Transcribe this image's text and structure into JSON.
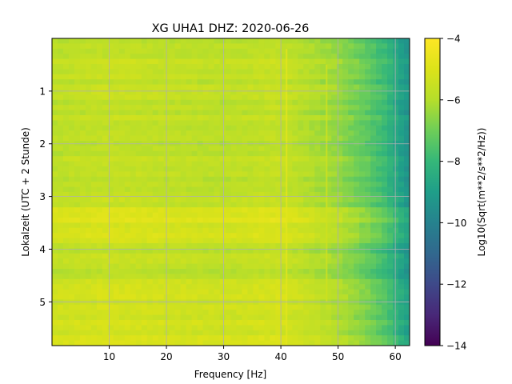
{
  "chart_data": {
    "type": "heatmap",
    "title": "XG UHA1  DHZ: 2020-06-26",
    "xlabel": "Frequency [Hz]",
    "ylabel": "Lokalzeit (UTC + 2 Stunde)",
    "colorbar_label": "Log10(Sqrt(m**2/s**2/Hz))",
    "xlim": [
      0,
      62.5
    ],
    "ylim": [
      5.83,
      0
    ],
    "clim": [
      -14,
      -4
    ],
    "colormap": "viridis",
    "grid": true,
    "xticks": [
      10,
      20,
      30,
      40,
      50,
      60
    ],
    "xtick_labels": [
      "10",
      "20",
      "30",
      "40",
      "50",
      "60"
    ],
    "yticks": [
      1,
      2,
      3,
      4,
      5
    ],
    "ytick_labels": [
      "1",
      "2",
      "3",
      "4",
      "5"
    ],
    "cticks": [
      -4,
      -6,
      -8,
      -10,
      -12,
      -14
    ],
    "ctick_labels": [
      "−4",
      "−6",
      "−8",
      "−10",
      "−12",
      "−14"
    ],
    "z_profile_by_frequency": [
      {
        "x": 0,
        "z": -5.8
      },
      {
        "x": 10,
        "z": -5.6
      },
      {
        "x": 20,
        "z": -5.7
      },
      {
        "x": 30,
        "z": -5.8
      },
      {
        "x": 40,
        "z": -5.6
      },
      {
        "x": 45,
        "z": -6.0
      },
      {
        "x": 50,
        "z": -6.4
      },
      {
        "x": 55,
        "z": -7.2
      },
      {
        "x": 58,
        "z": -7.8
      },
      {
        "x": 60,
        "z": -8.5
      },
      {
        "x": 62.5,
        "z": -9.4
      }
    ],
    "loud_time_bands": [
      {
        "y_start": 3.25,
        "y_end": 3.85,
        "z_offset": 0.6
      },
      {
        "y_start": 4.6,
        "y_end": 5.83,
        "z_offset": 0.4
      }
    ],
    "features": [
      {
        "label": "line near 41 Hz",
        "x": 41,
        "y_start": 0.2,
        "y_end": 5.83
      },
      {
        "label": "line near 48 Hz",
        "x": 48,
        "y_start": 0.5,
        "y_end": 5.0
      }
    ]
  }
}
